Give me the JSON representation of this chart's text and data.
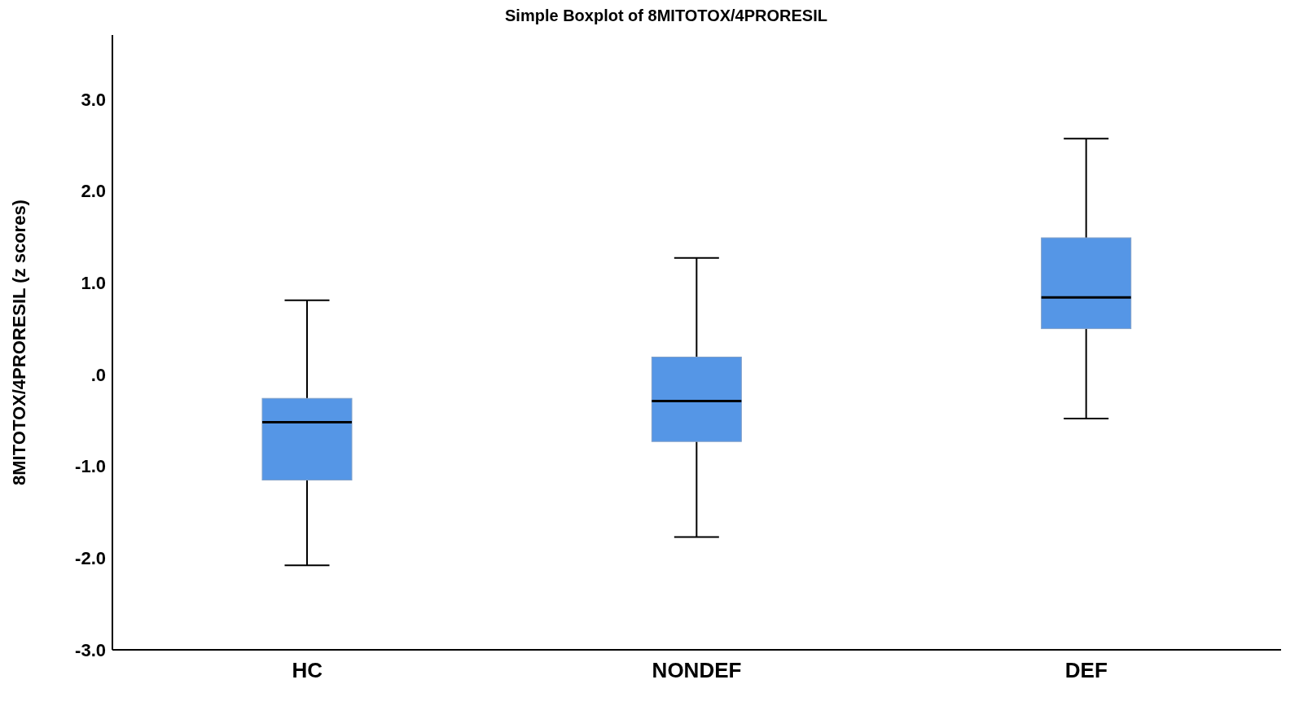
{
  "chart_data": {
    "type": "box",
    "title": "Simple Boxplot of 8MITOTOX/4PRORESIL",
    "ylabel": "8MITOTOX/4PRORESIL (z scores)",
    "categories": [
      "HC",
      "NONDEF",
      "DEF"
    ],
    "color": "#5596e6",
    "boxes": [
      {
        "low": -2.08,
        "q1": -1.15,
        "median": -0.52,
        "q3": -0.26,
        "high": 0.81
      },
      {
        "low": -1.77,
        "q1": -0.73,
        "median": -0.29,
        "q3": 0.19,
        "high": 1.27
      },
      {
        "low": -0.48,
        "q1": 0.5,
        "median": 0.84,
        "q3": 1.49,
        "high": 2.57
      }
    ],
    "ylim": [
      -3,
      3.7
    ],
    "yticks": [
      {
        "value": -3,
        "label": "-3.0"
      },
      {
        "value": -2,
        "label": "-2.0"
      },
      {
        "value": -1,
        "label": "-1.0"
      },
      {
        "value": 0,
        "label": ".0"
      },
      {
        "value": 1,
        "label": "1.0"
      },
      {
        "value": 2,
        "label": "2.0"
      },
      {
        "value": 3,
        "label": "3.0"
      }
    ]
  }
}
